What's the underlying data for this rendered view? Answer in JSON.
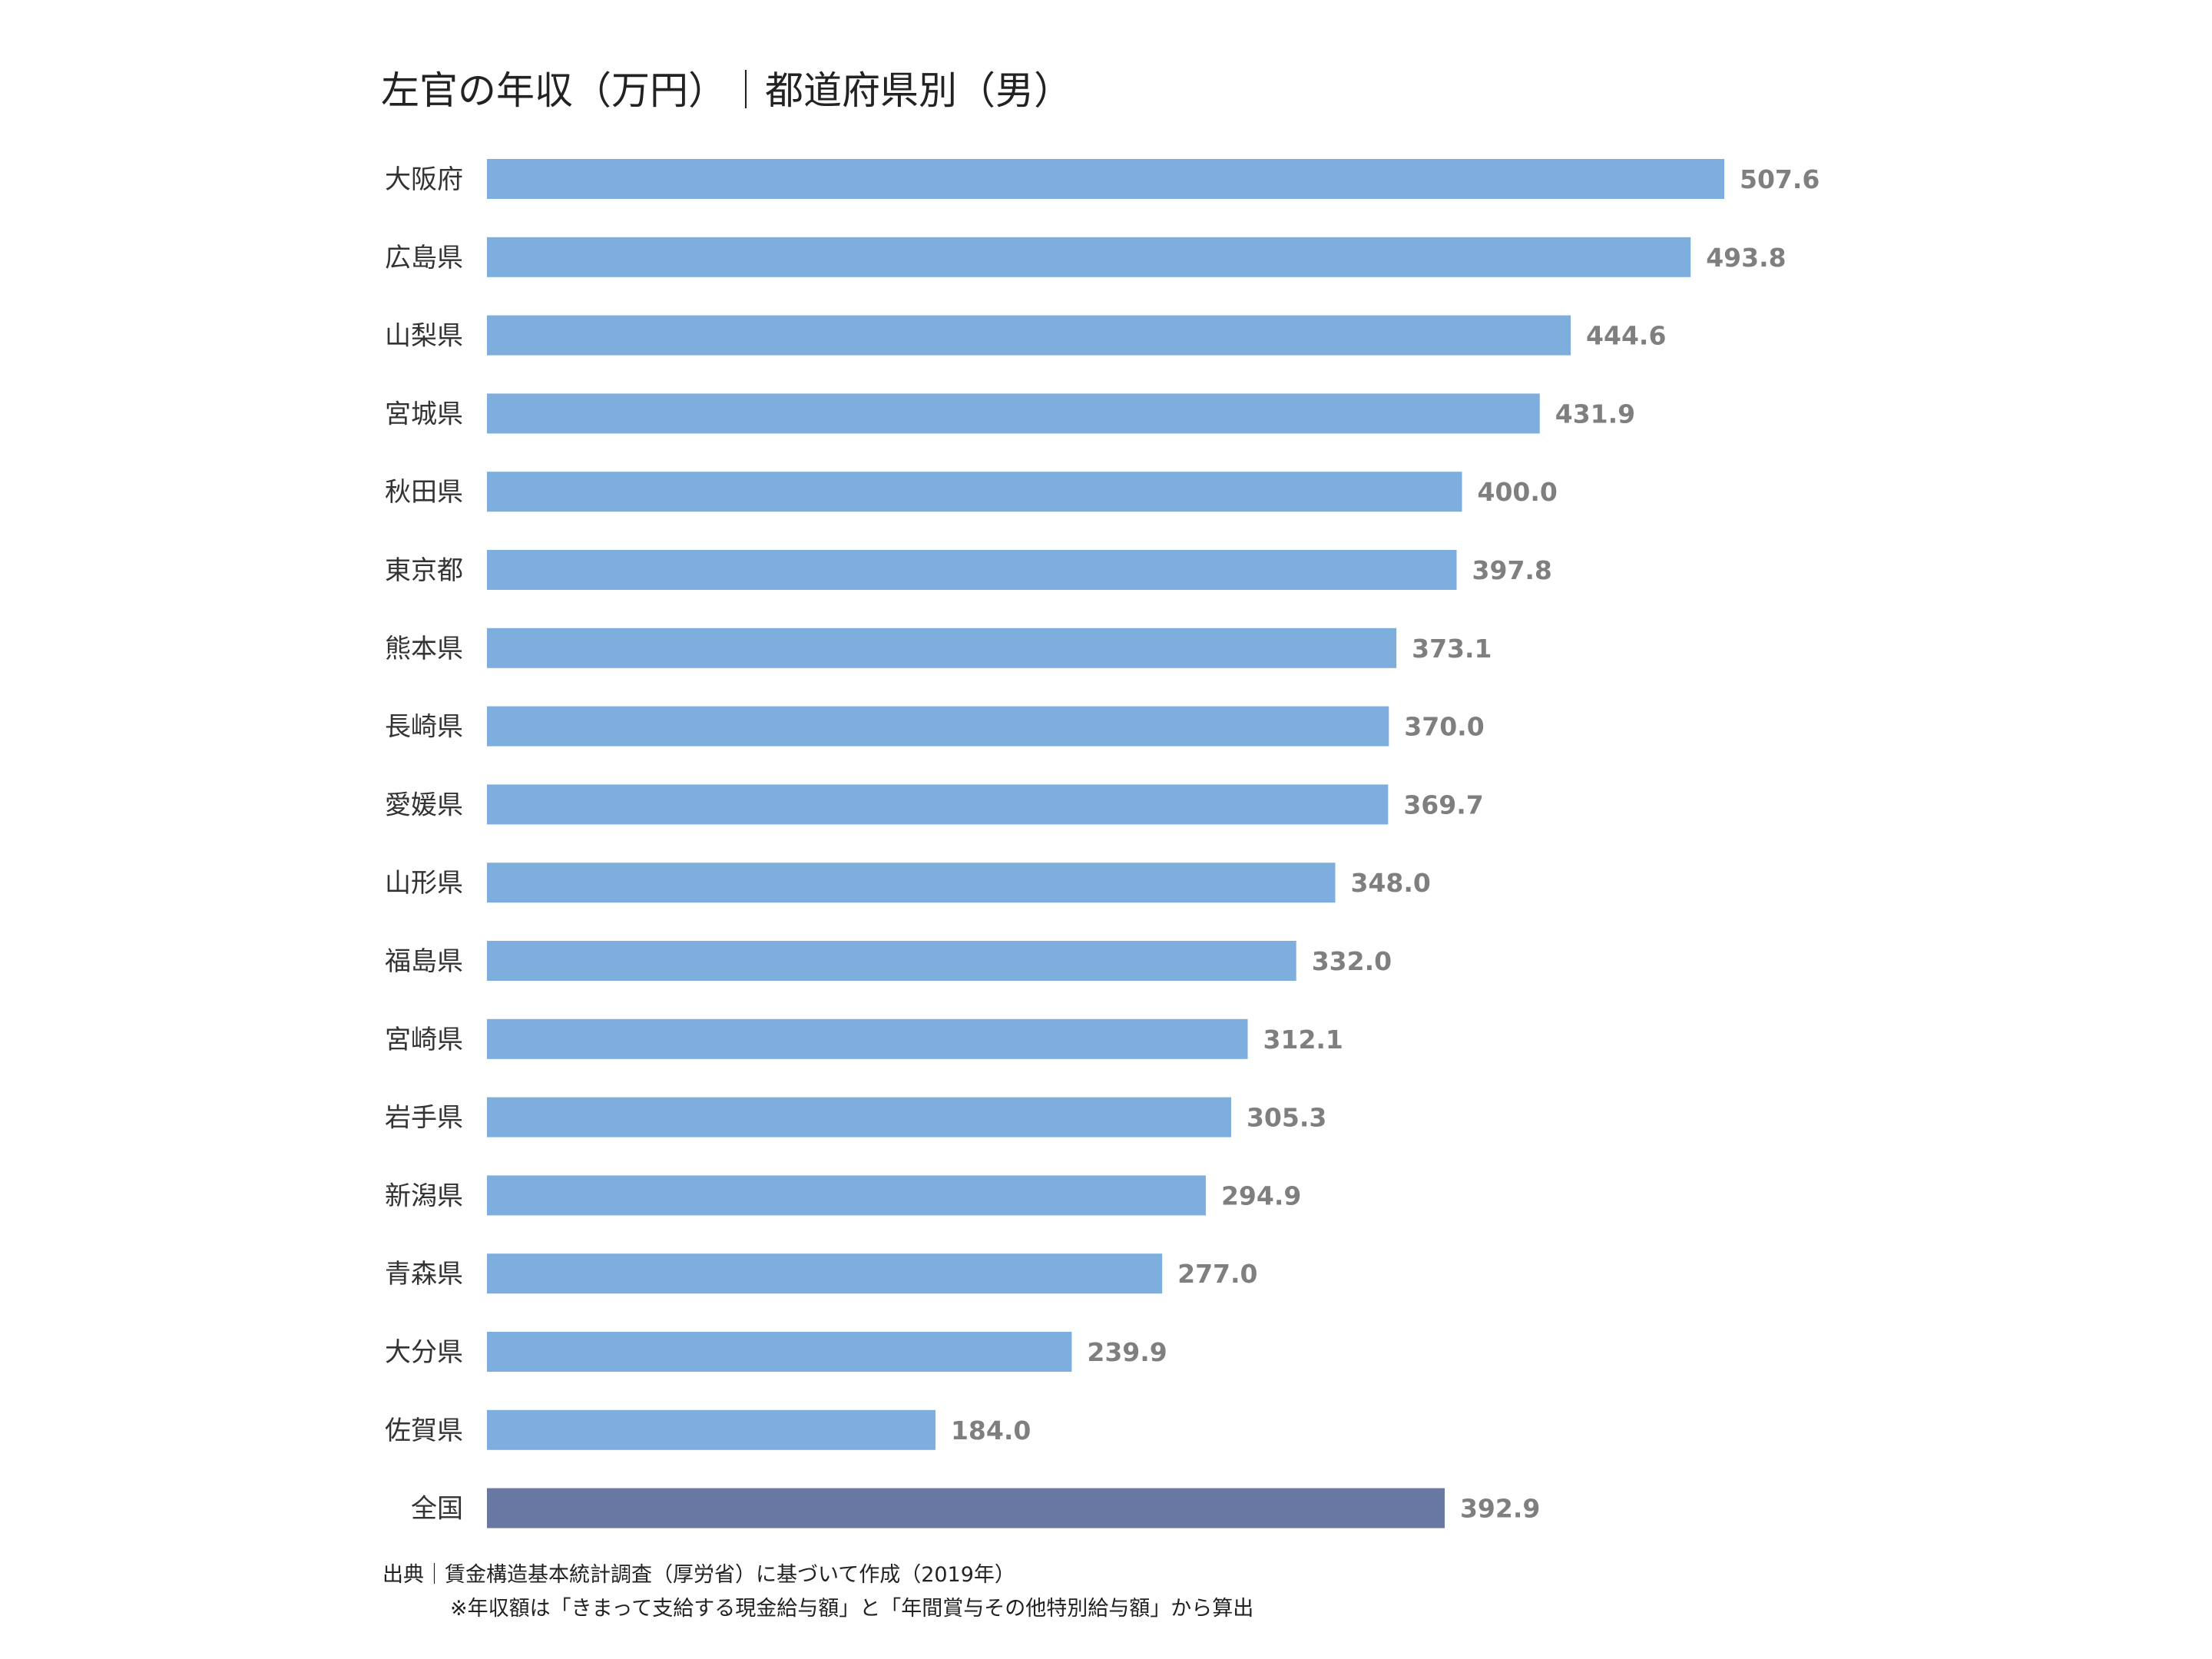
{
  "chart_data": {
    "type": "bar",
    "orientation": "horizontal",
    "title": "左官の年収（万円）｜都道府県別（男）",
    "categories": [
      "大阪府",
      "広島県",
      "山梨県",
      "宮城県",
      "秋田県",
      "東京都",
      "熊本県",
      "長崎県",
      "愛媛県",
      "山形県",
      "福島県",
      "宮崎県",
      "岩手県",
      "新潟県",
      "青森県",
      "大分県",
      "佐賀県",
      "全国"
    ],
    "values": [
      507.6,
      493.8,
      444.6,
      431.9,
      400.0,
      397.8,
      373.1,
      370.0,
      369.7,
      348.0,
      332.0,
      312.1,
      305.3,
      294.9,
      277.0,
      239.9,
      184.0,
      392.9
    ],
    "value_labels": [
      "507.6",
      "493.8",
      "444.6",
      "431.9",
      "400.0",
      "397.8",
      "373.1",
      "370.0",
      "369.7",
      "348.0",
      "332.0",
      "312.1",
      "305.3",
      "294.9",
      "277.0",
      "239.9",
      "184.0",
      "392.9"
    ],
    "xlabel": "",
    "ylabel": "",
    "xlim": [
      0,
      507.6
    ],
    "grid": false,
    "colors": {
      "bar": "#7daedd",
      "highlight": "#6878a2",
      "value_label": "#7f7f7f",
      "category_label": "#333333"
    },
    "highlight_category": "全国"
  },
  "footer": {
    "source": "出典｜賃金構造基本統計調査（厚労省）に基づいて作成（2019年）",
    "note": "※年収額は「きまって支給する現金給与額」と「年間賞与その他特別給与額」から算出"
  }
}
